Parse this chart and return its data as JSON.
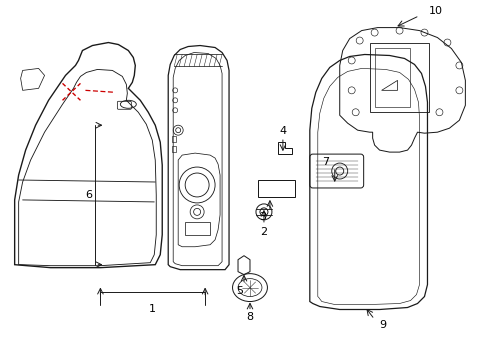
{
  "background_color": "#ffffff",
  "line_color": "#1a1a1a",
  "red_color": "#cc0000",
  "label_color": "#000000",
  "lw": 0.9
}
